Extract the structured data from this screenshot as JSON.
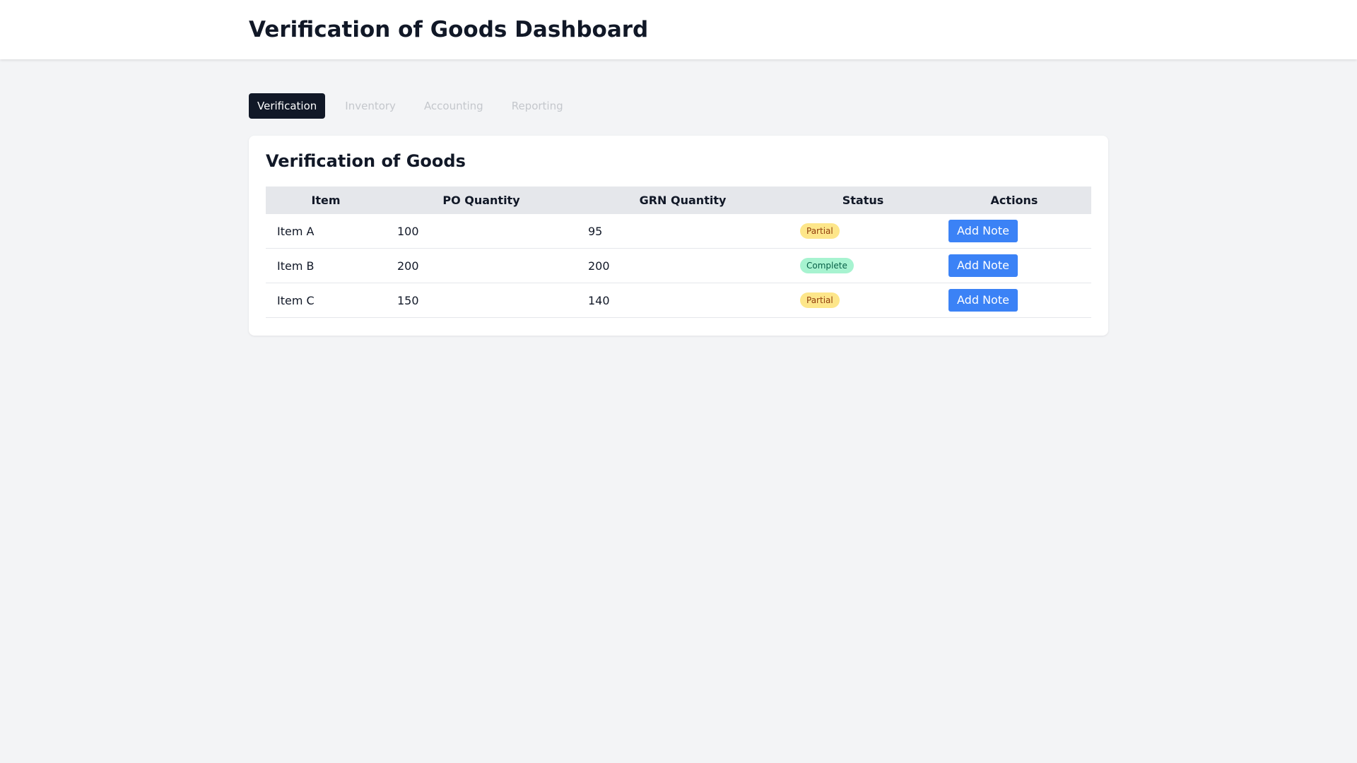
{
  "header": {
    "title": "Verification of Goods Dashboard"
  },
  "tabs": [
    {
      "label": "Verification",
      "active": true
    },
    {
      "label": "Inventory",
      "active": false
    },
    {
      "label": "Accounting",
      "active": false
    },
    {
      "label": "Reporting",
      "active": false
    }
  ],
  "card": {
    "title": "Verification of Goods",
    "columns": [
      "Item",
      "PO Quantity",
      "GRN Quantity",
      "Status",
      "Actions"
    ],
    "rows": [
      {
        "item": "Item A",
        "po_qty": "100",
        "grn_qty": "95",
        "status": "Partial",
        "action": "Add Note"
      },
      {
        "item": "Item B",
        "po_qty": "200",
        "grn_qty": "200",
        "status": "Complete",
        "action": "Add Note"
      },
      {
        "item": "Item C",
        "po_qty": "150",
        "grn_qty": "140",
        "status": "Partial",
        "action": "Add Note"
      }
    ]
  },
  "colors": {
    "active_tab": "#111827",
    "button": "#3b82f6",
    "partial_badge": "#fde68a",
    "complete_badge": "#a7f3d0"
  }
}
